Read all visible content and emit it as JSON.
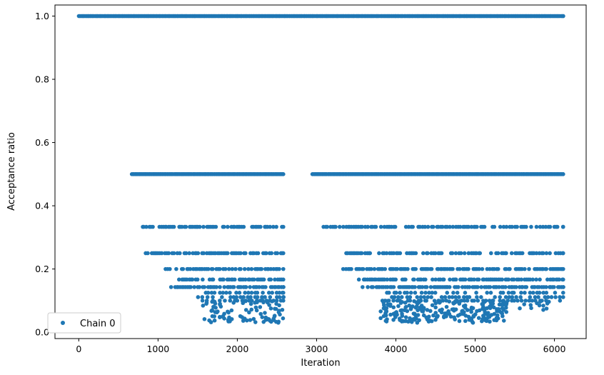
{
  "chart_data": {
    "type": "scatter",
    "xlabel": "Iteration",
    "ylabel": "Acceptance ratio",
    "xlim": [
      -300,
      6400
    ],
    "ylim": [
      -0.02,
      1.035
    ],
    "xticks": [
      0,
      1000,
      2000,
      3000,
      4000,
      5000,
      6000
    ],
    "xtick_labels": [
      "0",
      "1000",
      "2000",
      "3000",
      "4000",
      "5000",
      "6000"
    ],
    "yticks": [
      0.0,
      0.2,
      0.4,
      0.6,
      0.8,
      1.0
    ],
    "ytick_labels": [
      "0.0",
      "0.2",
      "0.4",
      "0.6",
      "0.8",
      "1.0"
    ],
    "grid": false,
    "legend": {
      "position": "lower-left",
      "entries": [
        "Chain 0"
      ]
    },
    "series": [
      {
        "name": "Chain 0",
        "color": "#1f77b4",
        "marker": "circle",
        "bands": [
          {
            "y": 1.0,
            "segments": [
              [
                0,
                6110
              ]
            ],
            "density": "dense"
          },
          {
            "y": 0.5,
            "segments": [
              [
                670,
                2580
              ],
              [
                2950,
                6110
              ]
            ],
            "density": "dense"
          },
          {
            "y": 0.3333,
            "segments": [
              [
                780,
                2580
              ],
              [
                3090,
                6110
              ]
            ],
            "density": "medium"
          },
          {
            "y": 0.25,
            "segments": [
              [
                850,
                2580
              ],
              [
                3350,
                6110
              ]
            ],
            "density": "medium"
          },
          {
            "y": 0.2,
            "segments": [
              [
                1100,
                2580
              ],
              [
                3330,
                6110
              ]
            ],
            "density": "medium"
          },
          {
            "y": 0.1667,
            "segments": [
              [
                1260,
                2580
              ],
              [
                3510,
                6110
              ]
            ],
            "density": "medium"
          },
          {
            "y": 0.1429,
            "segments": [
              [
                1170,
                2580
              ],
              [
                3580,
                6110
              ]
            ],
            "density": "medium"
          },
          {
            "y": 0.125,
            "segments": [
              [
                1500,
                2580
              ],
              [
                3880,
                6110
              ]
            ],
            "density": "sparse"
          },
          {
            "y": 0.1111,
            "segments": [
              [
                1500,
                2580
              ],
              [
                3950,
                6110
              ]
            ],
            "density": "sparse"
          },
          {
            "y": 0.1,
            "segments": [
              [
                1560,
                2580
              ],
              [
                3830,
                6070
              ]
            ],
            "density": "sparse"
          }
        ],
        "scatter_clusters": [
          {
            "x_range": [
              1550,
              2580
            ],
            "y_range": [
              0.03,
              0.1
            ],
            "count": 90
          },
          {
            "x_range": [
              3800,
              5400
            ],
            "y_range": [
              0.03,
              0.1
            ],
            "count": 220
          },
          {
            "x_range": [
              5400,
              6100
            ],
            "y_range": [
              0.07,
              0.1
            ],
            "count": 12
          }
        ]
      }
    ]
  }
}
